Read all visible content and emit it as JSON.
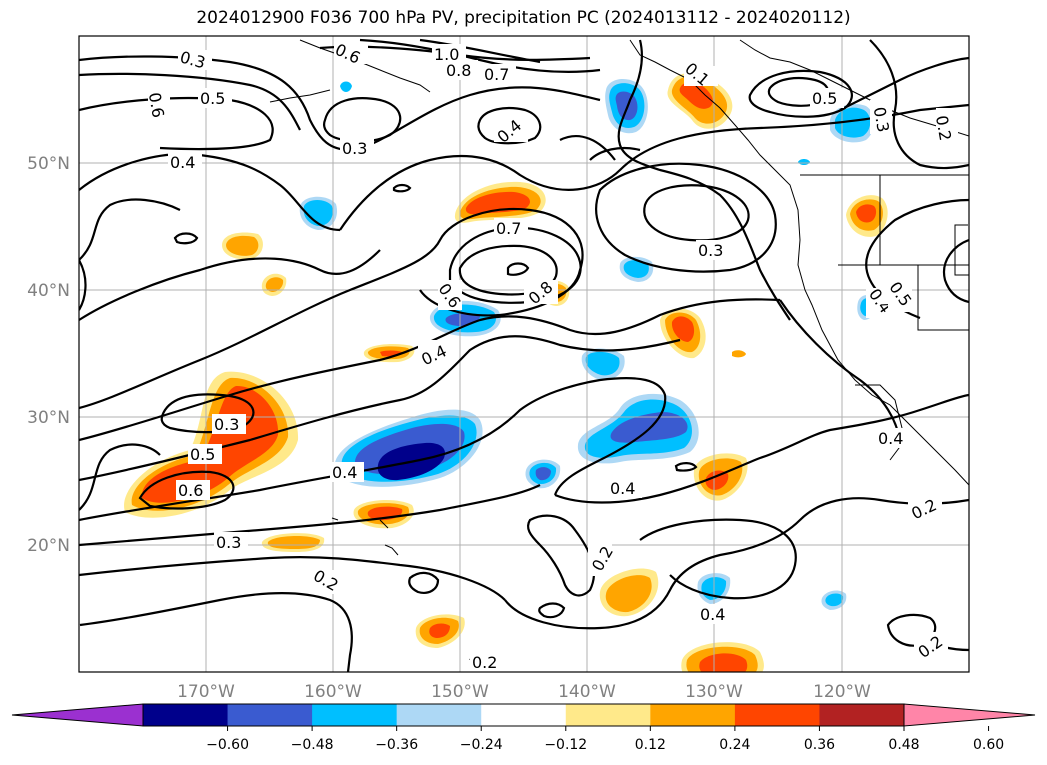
{
  "title": "2024012900 F036 700 hPa PV, precipitation PC (2024013112 - 2024020112)",
  "lon_labels": [
    "170°W",
    "160°W",
    "150°W",
    "140°W",
    "130°W",
    "120°W"
  ],
  "lat_labels": [
    "50°N",
    "40°N",
    "30°N",
    "20°N"
  ],
  "colorbar": {
    "colors": [
      "#9b30d0",
      "#00008b",
      "#3a5bd0",
      "#00bfff",
      "#add8f5",
      "#ffffff",
      "#ffe98a",
      "#ffa500",
      "#ff4500",
      "#b22222",
      "#ff85a8"
    ],
    "tick_labels": [
      "−0.60",
      "−0.48",
      "−0.36",
      "−0.24",
      "−0.12",
      "0.12",
      "0.24",
      "0.36",
      "0.48",
      "0.60"
    ]
  },
  "contour_labels": [
    "0.3",
    "0.6",
    "1.0",
    "0.8",
    "0.7",
    "0.1",
    "0.6",
    "0.5",
    "0.3",
    "0.2",
    "0.5",
    "0.4",
    "0.3",
    "0.4",
    "0.7",
    "0.3",
    "0.6",
    "0.8",
    "0.4",
    "0.5",
    "0.4",
    "0.3",
    "0.5",
    "0.6",
    "0.4",
    "0.4",
    "0.4",
    "0.3",
    "0.2",
    "0.2",
    "0.4",
    "0.2",
    "0.2",
    "0.2"
  ]
}
